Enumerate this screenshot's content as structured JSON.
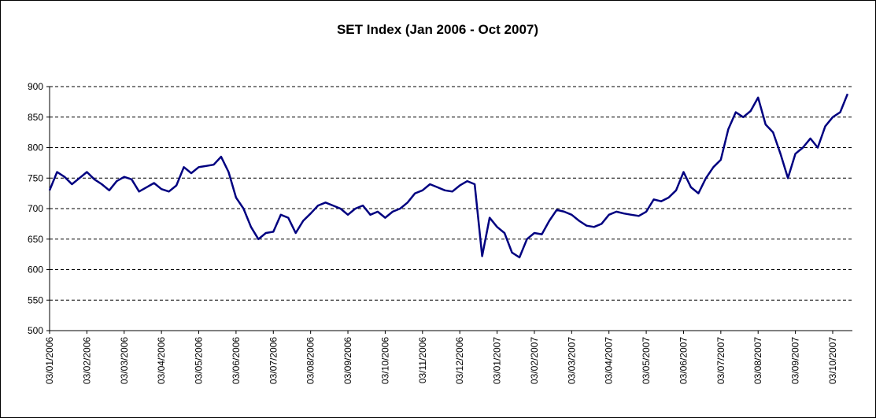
{
  "chart_data": {
    "type": "line",
    "title": "SET Index (Jan 2006 - Oct 2007)",
    "categories": [
      "03/01/2006",
      null,
      null,
      null,
      null,
      "03/02/2006",
      null,
      null,
      null,
      null,
      "03/03/2006",
      null,
      null,
      null,
      null,
      "03/04/2006",
      null,
      null,
      null,
      null,
      "03/05/2006",
      null,
      null,
      null,
      null,
      "03/06/2006",
      null,
      null,
      null,
      null,
      "03/07/2006",
      null,
      null,
      null,
      null,
      "03/08/2006",
      null,
      null,
      null,
      null,
      "03/09/2006",
      null,
      null,
      null,
      null,
      "03/10/2006",
      null,
      null,
      null,
      null,
      "03/11/2006",
      null,
      null,
      null,
      null,
      "03/12/2006",
      null,
      null,
      null,
      null,
      "03/01/2007",
      null,
      null,
      null,
      null,
      "03/02/2007",
      null,
      null,
      null,
      null,
      "03/03/2007",
      null,
      null,
      null,
      null,
      "03/04/2007",
      null,
      null,
      null,
      null,
      "03/05/2007",
      null,
      null,
      null,
      null,
      "03/06/2007",
      null,
      null,
      null,
      null,
      "03/07/2007",
      null,
      null,
      null,
      null,
      "03/08/2007",
      null,
      null,
      null,
      null,
      "03/09/2007",
      null,
      null,
      null,
      null,
      "03/10/2007",
      null,
      null
    ],
    "series": [
      {
        "name": "SET Index",
        "color": "#000080",
        "values": [
          730,
          760,
          752,
          740,
          750,
          760,
          748,
          740,
          730,
          745,
          752,
          748,
          728,
          735,
          742,
          732,
          728,
          738,
          768,
          758,
          768,
          770,
          772,
          785,
          760,
          718,
          700,
          670,
          650,
          660,
          662,
          690,
          685,
          660,
          680,
          692,
          705,
          710,
          705,
          700,
          690,
          700,
          705,
          690,
          695,
          685,
          695,
          700,
          710,
          725,
          730,
          740,
          735,
          730,
          728,
          738,
          745,
          740,
          622,
          685,
          670,
          660,
          628,
          620,
          650,
          660,
          658,
          680,
          698,
          695,
          690,
          680,
          672,
          670,
          675,
          690,
          695,
          692,
          690,
          688,
          695,
          715,
          712,
          718,
          730,
          760,
          735,
          725,
          750,
          768,
          780,
          830,
          858,
          850,
          860,
          882,
          838,
          825,
          790,
          750,
          790,
          800,
          815,
          800,
          835,
          850,
          858,
          888
        ]
      }
    ],
    "ylim": [
      500,
      900
    ],
    "yticks": [
      500,
      550,
      600,
      650,
      700,
      750,
      800,
      850,
      900
    ],
    "grid": true
  }
}
